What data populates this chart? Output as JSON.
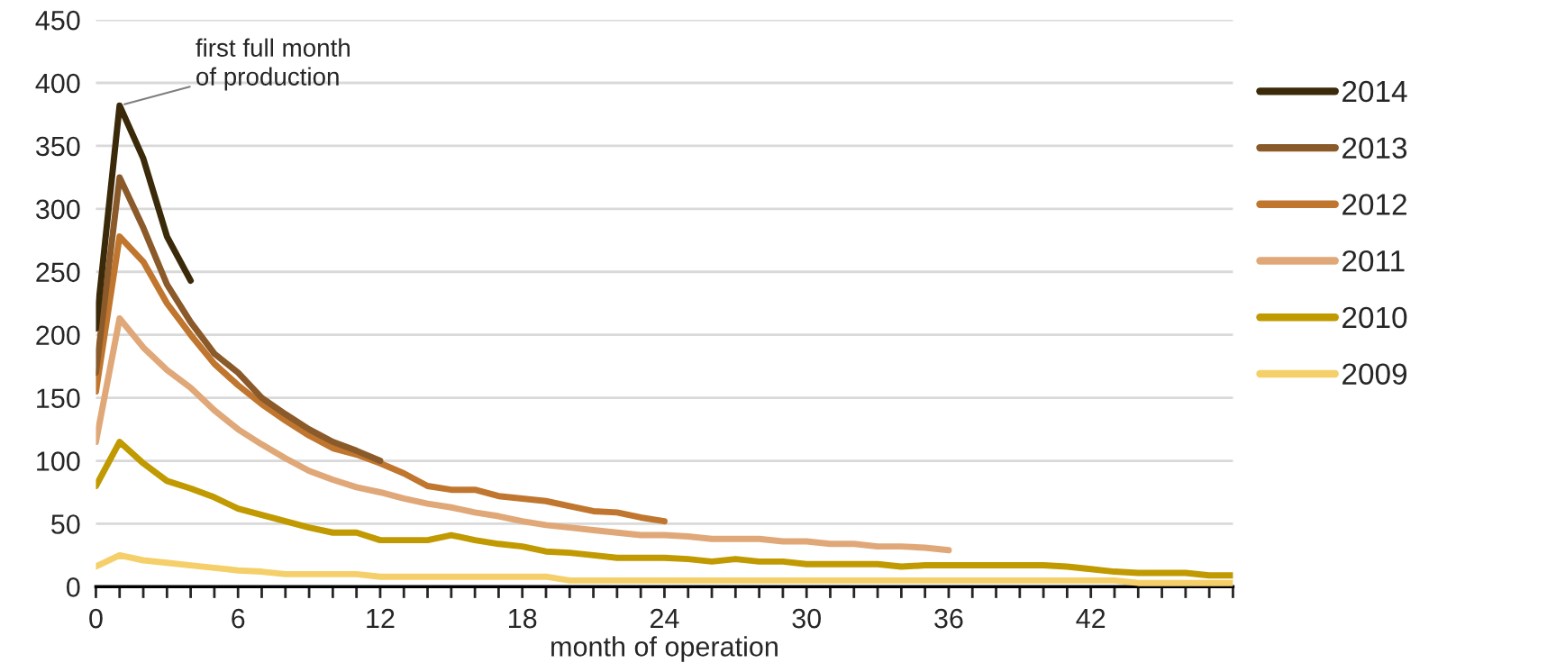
{
  "chart_data": {
    "type": "line",
    "xlabel": "month of operation",
    "xlim": [
      0,
      48
    ],
    "xticks": [
      0,
      6,
      12,
      18,
      24,
      30,
      36,
      42,
      {
        "value": 48,
        "label": null
      }
    ],
    "ylim": [
      0,
      450
    ],
    "yticks": [
      0,
      50,
      100,
      150,
      200,
      250,
      300,
      350,
      400,
      450
    ],
    "grid": "y",
    "legend": "right",
    "line_style": "solid",
    "annotations": [
      {
        "text": "first full month\nof production",
        "x": 1,
        "y": 382
      }
    ],
    "series": [
      {
        "name": "2014",
        "color": "#3b2a0a",
        "x": [
          0,
          1,
          2,
          3,
          4
        ],
        "values": [
          205,
          382,
          340,
          278,
          243
        ]
      },
      {
        "name": "2013",
        "color": "#8b5a2b",
        "x": [
          0,
          1,
          2,
          3,
          4,
          5,
          6,
          7,
          8,
          9,
          10,
          11,
          12
        ],
        "values": [
          170,
          325,
          285,
          240,
          210,
          185,
          170,
          150,
          137,
          125,
          115,
          108,
          100
        ]
      },
      {
        "name": "2012",
        "color": "#c0762e",
        "x": [
          0,
          1,
          2,
          3,
          4,
          5,
          6,
          7,
          8,
          9,
          10,
          11,
          12,
          13,
          14,
          15,
          16,
          17,
          18,
          19,
          20,
          21,
          22,
          23,
          24
        ],
        "values": [
          155,
          278,
          258,
          225,
          200,
          177,
          160,
          145,
          132,
          120,
          110,
          105,
          98,
          90,
          80,
          77,
          77,
          72,
          70,
          68,
          64,
          60,
          59,
          55,
          52
        ]
      },
      {
        "name": "2011",
        "color": "#e0a878",
        "x": [
          0,
          1,
          2,
          3,
          4,
          5,
          6,
          7,
          8,
          9,
          10,
          11,
          12,
          13,
          14,
          15,
          16,
          17,
          18,
          19,
          20,
          21,
          22,
          23,
          24,
          25,
          26,
          27,
          28,
          29,
          30,
          31,
          32,
          33,
          34,
          35,
          36
        ],
        "values": [
          115,
          213,
          190,
          172,
          158,
          140,
          125,
          113,
          102,
          92,
          85,
          79,
          75,
          70,
          66,
          63,
          59,
          56,
          52,
          49,
          47,
          45,
          43,
          41,
          41,
          40,
          38,
          38,
          38,
          36,
          36,
          34,
          34,
          32,
          32,
          31,
          29
        ]
      },
      {
        "name": "2010",
        "color": "#c09a00",
        "x": [
          0,
          1,
          2,
          3,
          4,
          5,
          6,
          7,
          8,
          9,
          10,
          11,
          12,
          13,
          14,
          15,
          16,
          17,
          18,
          19,
          20,
          21,
          22,
          23,
          24,
          25,
          26,
          27,
          28,
          29,
          30,
          31,
          32,
          33,
          34,
          35,
          36,
          37,
          38,
          39,
          40,
          41,
          42,
          43,
          44,
          45,
          46,
          47,
          48
        ],
        "values": [
          80,
          115,
          98,
          84,
          78,
          71,
          62,
          57,
          52,
          47,
          43,
          43,
          37,
          37,
          37,
          41,
          37,
          34,
          32,
          28,
          27,
          25,
          23,
          23,
          23,
          22,
          20,
          22,
          20,
          20,
          18,
          18,
          18,
          18,
          16,
          17,
          17,
          17,
          17,
          17,
          17,
          16,
          14,
          12,
          11,
          11,
          11,
          9,
          9
        ]
      },
      {
        "name": "2009",
        "color": "#f5d06a",
        "x": [
          0,
          1,
          2,
          3,
          4,
          5,
          6,
          7,
          8,
          9,
          10,
          11,
          12,
          13,
          14,
          15,
          16,
          17,
          18,
          19,
          20,
          21,
          22,
          23,
          24,
          25,
          26,
          27,
          28,
          29,
          30,
          31,
          32,
          33,
          34,
          35,
          36,
          37,
          38,
          39,
          40,
          41,
          42,
          43,
          44,
          45,
          46,
          47,
          48
        ],
        "values": [
          16,
          25,
          21,
          19,
          17,
          15,
          13,
          12,
          10,
          10,
          10,
          10,
          8,
          8,
          8,
          8,
          8,
          8,
          8,
          8,
          5,
          5,
          5,
          5,
          5,
          5,
          5,
          5,
          5,
          5,
          5,
          5,
          5,
          5,
          5,
          5,
          5,
          5,
          5,
          5,
          5,
          5,
          5,
          5,
          3,
          3,
          3,
          3,
          3
        ]
      }
    ]
  }
}
